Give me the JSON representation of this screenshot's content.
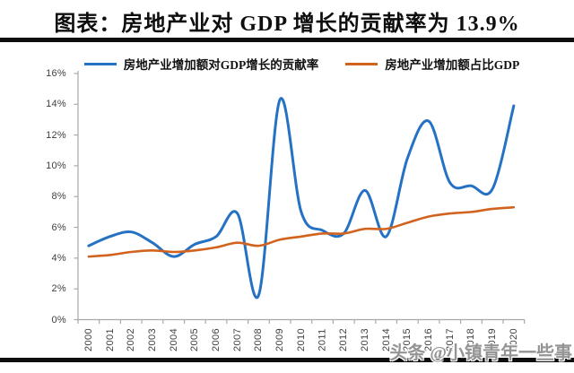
{
  "page": {
    "title": "图表：房地产业对 GDP 增长的贡献率为 13.9%",
    "watermark": "头条 @小镇青年一些事"
  },
  "chart_data": {
    "type": "line",
    "title": "图表：房地产业对 GDP 增长的贡献率为 13.9%",
    "categories": [
      "2000",
      "2001",
      "2002",
      "2003",
      "2004",
      "2005",
      "2006",
      "2007",
      "2008",
      "2009",
      "2010",
      "2011",
      "2012",
      "2013",
      "2014",
      "2015",
      "2016",
      "2017",
      "2018",
      "2019",
      "2020"
    ],
    "series": [
      {
        "name": "房地产业增加额对GDP增长的贡献率",
        "color": "#2572C4",
        "values": [
          4.8,
          5.4,
          5.7,
          5.0,
          4.1,
          4.9,
          5.4,
          6.9,
          1.6,
          14.3,
          7.0,
          5.8,
          5.6,
          8.4,
          5.4,
          10.5,
          12.9,
          8.9,
          8.7,
          8.5,
          13.9
        ]
      },
      {
        "name": "房地产业增加额占比GDP",
        "color": "#D2631E",
        "values": [
          4.1,
          4.2,
          4.4,
          4.5,
          4.4,
          4.5,
          4.7,
          5.0,
          4.8,
          5.2,
          5.4,
          5.6,
          5.6,
          5.9,
          5.9,
          6.3,
          6.7,
          6.9,
          7.0,
          7.2,
          7.3
        ]
      }
    ],
    "xlabel": "",
    "ylabel": "",
    "ylim": [
      0,
      16
    ],
    "ytick_step": 2,
    "ytick_labels": [
      "0%",
      "2%",
      "4%",
      "6%",
      "8%",
      "10%",
      "12%",
      "14%",
      "16%"
    ],
    "grid": false,
    "smooth": true,
    "legend_position": "top"
  }
}
